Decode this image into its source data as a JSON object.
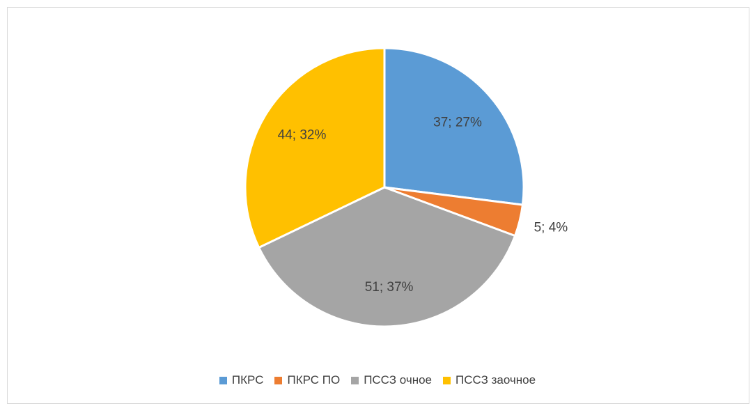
{
  "chart_data": {
    "type": "pie",
    "categories": [
      "ПКРС",
      "ПКРС ПО",
      "ПССЗ очное",
      "ПССЗ заочное"
    ],
    "values": [
      37,
      5,
      51,
      44
    ],
    "percentages": [
      27,
      4,
      37,
      32
    ],
    "data_labels": [
      "37; 27%",
      "5; 4%",
      "51; 37%",
      "44; 32%"
    ],
    "colors": [
      "#5b9bd5",
      "#ed7d31",
      "#a5a5a5",
      "#ffc000"
    ],
    "title": "",
    "legend_position": "bottom",
    "start_angle": "12 o'clock",
    "direction": "clockwise"
  }
}
